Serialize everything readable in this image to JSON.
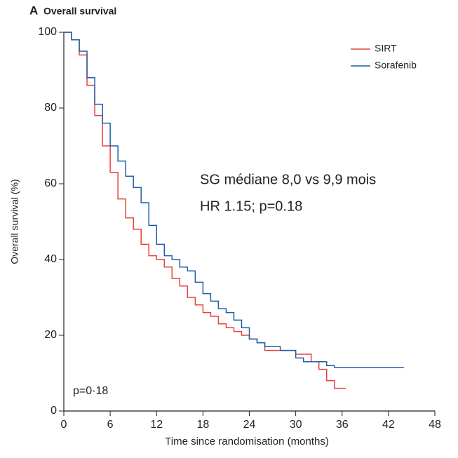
{
  "chart_data": {
    "type": "step",
    "panel_label": "A",
    "title": "Overall survival",
    "xlabel": "Time since randomisation (months)",
    "ylabel": "Overall survival (%)",
    "annotations": [
      "SG médiane 8,0 vs 9,9 mois",
      "HR 1.15; p=0.18",
      "p=0·18"
    ],
    "xlim": [
      0,
      48
    ],
    "xticks": [
      0,
      6,
      12,
      18,
      24,
      30,
      36,
      42,
      48
    ],
    "ylim": [
      0,
      100
    ],
    "yticks": [
      0,
      20,
      40,
      60,
      80,
      100
    ],
    "grid": false,
    "legend": "upper right",
    "series": [
      {
        "name": "SIRT",
        "color": "#e8413a",
        "x": [
          0,
          1,
          2,
          3,
          4,
          5,
          6,
          7,
          8,
          9,
          10,
          11,
          12,
          13,
          14,
          15,
          16,
          17,
          18,
          19,
          20,
          21,
          22,
          23,
          24,
          25,
          26,
          28,
          30,
          32,
          33,
          34,
          35,
          36.5
        ],
        "values": [
          100,
          98,
          94,
          86,
          78,
          70,
          63,
          56,
          51,
          48,
          44,
          41,
          40,
          38,
          35,
          33,
          30,
          28,
          26,
          25,
          23,
          22,
          21,
          20,
          19,
          18,
          16,
          16,
          15,
          13,
          11,
          8,
          6,
          6
        ]
      },
      {
        "name": "Sorafenib",
        "color": "#1f5fa8",
        "x": [
          0,
          1,
          2,
          3,
          4,
          5,
          6,
          7,
          8,
          9,
          10,
          11,
          12,
          13,
          14,
          15,
          16,
          17,
          18,
          19,
          20,
          21,
          22,
          23,
          24,
          25,
          26,
          28,
          30,
          31,
          33,
          34,
          35,
          44
        ],
        "values": [
          100,
          98,
          95,
          88,
          81,
          76,
          70,
          66,
          62,
          59,
          55,
          49,
          44,
          41,
          40,
          38,
          37,
          34,
          31,
          29,
          27,
          26,
          24,
          22,
          19,
          18,
          17,
          16,
          14,
          13,
          13,
          12,
          11.5,
          11.5
        ]
      }
    ]
  }
}
